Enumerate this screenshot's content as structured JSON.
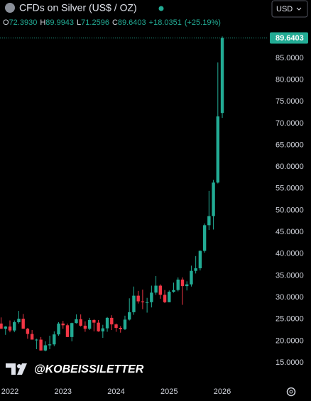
{
  "header": {
    "title": "CFDs on Silver (US$ / OZ)",
    "currency": "USD",
    "ohlc": [
      {
        "key": "O",
        "value": "72.3930"
      },
      {
        "key": "H",
        "value": "89.9943"
      },
      {
        "key": "L",
        "value": "71.2596"
      },
      {
        "key": "C",
        "value": "89.6403"
      }
    ],
    "change": "+18.0351",
    "change_pct": "(+25.19%)",
    "watermark": "@KOBEISSILETTER"
  },
  "chart_data": {
    "type": "candlestick",
    "categories": [
      null,
      null,
      "2022",
      null,
      null,
      null,
      null,
      null,
      null,
      null,
      null,
      null,
      null,
      null,
      "2023",
      null,
      null,
      null,
      null,
      null,
      null,
      null,
      null,
      null,
      null,
      null,
      "2024",
      null,
      null,
      null,
      null,
      null,
      null,
      null,
      null,
      null,
      null,
      null,
      "2025",
      null,
      null,
      null,
      null,
      null,
      null,
      null,
      null,
      null,
      null,
      null,
      "2026"
    ],
    "open": [
      24.0,
      22.8,
      23.3,
      22.4,
      24.3,
      25.1,
      22.8,
      21.6,
      20.3,
      20.3,
      17.8,
      19.0,
      19.2,
      21.5,
      24.0,
      23.6,
      20.9,
      24.1,
      25.0,
      23.5,
      22.8,
      24.8,
      24.2,
      22.2,
      22.9,
      25.3,
      23.8,
      23.0,
      22.7,
      24.9,
      26.6,
      30.4,
      29.1,
      28.9,
      28.9,
      31.1,
      32.7,
      30.6,
      28.9,
      31.3,
      31.7,
      34.1,
      32.6,
      33.0,
      36.1,
      36.7,
      40.7,
      46.6,
      48.7,
      56.4,
      72.393
    ],
    "high": [
      25.4,
      23.4,
      24.7,
      24.7,
      26.9,
      26.2,
      23.0,
      22.5,
      20.5,
      20.9,
      19.9,
      21.2,
      22.2,
      24.3,
      24.6,
      24.0,
      24.2,
      26.1,
      26.1,
      24.5,
      25.3,
      25.0,
      24.8,
      23.7,
      25.5,
      25.9,
      24.0,
      23.4,
      25.8,
      29.8,
      32.5,
      31.5,
      31.8,
      29.9,
      32.7,
      34.9,
      33.0,
      31.7,
      31.6,
      33.4,
      34.6,
      34.6,
      33.7,
      37.3,
      39.5,
      40.8,
      47.0,
      54.5,
      57.0,
      84.0,
      89.9943
    ],
    "low": [
      22.8,
      21.4,
      22.0,
      22.0,
      24.0,
      22.8,
      20.5,
      20.5,
      18.1,
      17.8,
      17.6,
      18.1,
      18.8,
      21.2,
      22.8,
      20.9,
      19.9,
      24.0,
      23.3,
      22.1,
      22.5,
      22.2,
      22.1,
      20.7,
      22.1,
      22.5,
      22.1,
      21.9,
      22.5,
      24.7,
      26.0,
      28.6,
      27.3,
      26.5,
      27.7,
      30.6,
      29.7,
      28.7,
      28.9,
      31.1,
      31.4,
      28.3,
      31.6,
      32.5,
      35.5,
      36.2,
      40.3,
      45.5,
      45.6,
      56.2,
      71.2596
    ],
    "close": [
      22.8,
      23.3,
      22.4,
      24.3,
      25.1,
      22.8,
      21.6,
      20.3,
      20.3,
      17.8,
      19.0,
      19.2,
      21.5,
      24.0,
      23.6,
      20.9,
      24.1,
      25.0,
      23.5,
      22.8,
      24.8,
      24.2,
      22.2,
      22.9,
      25.3,
      23.8,
      23.0,
      22.7,
      24.9,
      26.6,
      30.4,
      29.1,
      28.9,
      28.9,
      31.1,
      32.7,
      30.6,
      28.9,
      31.3,
      31.7,
      34.1,
      32.6,
      33.0,
      36.1,
      36.7,
      40.7,
      46.6,
      48.7,
      56.4,
      71.6052,
      89.6403
    ],
    "up_color": "#22ab94",
    "down_color": "#f23645",
    "ylim": [
      10.27,
      91.84
    ],
    "yticks": [
      {
        "value": 15,
        "label": "15.0000"
      },
      {
        "value": 20,
        "label": "20.0000"
      },
      {
        "value": 25,
        "label": "25.0000"
      },
      {
        "value": 30,
        "label": "30.0000"
      },
      {
        "value": 35,
        "label": "35.0000"
      },
      {
        "value": 40,
        "label": "40.0000"
      },
      {
        "value": 45,
        "label": "45.0000"
      },
      {
        "value": 50,
        "label": "50.0000"
      },
      {
        "value": 55,
        "label": "55.0000"
      },
      {
        "value": 60,
        "label": "60.0000"
      },
      {
        "value": 65,
        "label": "65.0000"
      },
      {
        "value": 70,
        "label": "70.0000"
      },
      {
        "value": 75,
        "label": "75.0000"
      },
      {
        "value": 80,
        "label": "80.0000"
      },
      {
        "value": 85,
        "label": "85.0000"
      }
    ],
    "grid": false
  }
}
